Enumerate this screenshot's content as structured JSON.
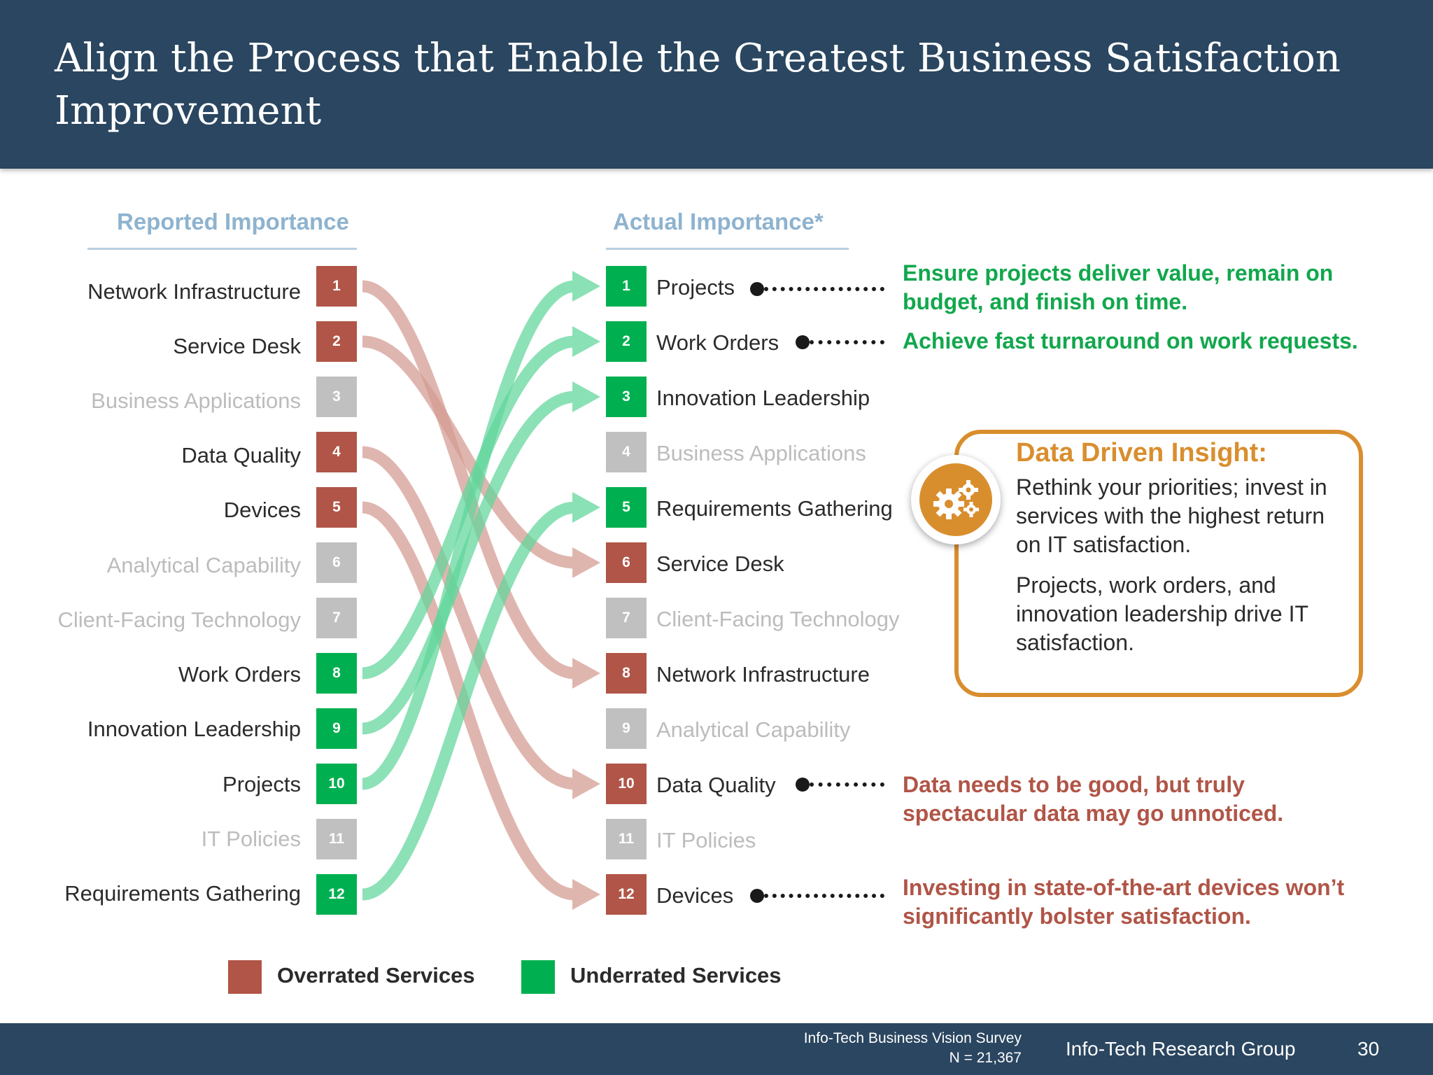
{
  "title": "Align the Process that Enable the Greatest Business Satisfaction Improvement",
  "columns": {
    "reported": "Reported Importance",
    "actual": "Actual Importance*"
  },
  "reported_list": [
    {
      "rank": "1",
      "label": "Network Infrastructure",
      "status": "overrated"
    },
    {
      "rank": "2",
      "label": "Service Desk",
      "status": "overrated"
    },
    {
      "rank": "3",
      "label": "Business Applications",
      "status": "neutral"
    },
    {
      "rank": "4",
      "label": "Data Quality",
      "status": "overrated"
    },
    {
      "rank": "5",
      "label": "Devices",
      "status": "overrated"
    },
    {
      "rank": "6",
      "label": "Analytical Capability",
      "status": "neutral"
    },
    {
      "rank": "7",
      "label": "Client-Facing Technology",
      "status": "neutral"
    },
    {
      "rank": "8",
      "label": "Work Orders",
      "status": "underrated"
    },
    {
      "rank": "9",
      "label": "Innovation Leadership",
      "status": "underrated"
    },
    {
      "rank": "10",
      "label": "Projects",
      "status": "underrated"
    },
    {
      "rank": "11",
      "label": "IT Policies",
      "status": "neutral"
    },
    {
      "rank": "12",
      "label": "Requirements Gathering",
      "status": "underrated"
    }
  ],
  "actual_list": [
    {
      "rank": "1",
      "label": "Projects",
      "status": "underrated"
    },
    {
      "rank": "2",
      "label": "Work Orders",
      "status": "underrated"
    },
    {
      "rank": "3",
      "label": "Innovation Leadership",
      "status": "underrated"
    },
    {
      "rank": "4",
      "label": "Business Applications",
      "status": "neutral"
    },
    {
      "rank": "5",
      "label": "Requirements Gathering",
      "status": "underrated"
    },
    {
      "rank": "6",
      "label": "Service Desk",
      "status": "overrated"
    },
    {
      "rank": "7",
      "label": "Client-Facing Technology",
      "status": "neutral"
    },
    {
      "rank": "8",
      "label": "Network Infrastructure",
      "status": "overrated"
    },
    {
      "rank": "9",
      "label": "Analytical Capability",
      "status": "neutral"
    },
    {
      "rank": "10",
      "label": "Data Quality",
      "status": "overrated"
    },
    {
      "rank": "11",
      "label": "IT Policies",
      "status": "neutral"
    },
    {
      "rank": "12",
      "label": "Devices",
      "status": "overrated"
    }
  ],
  "flows": [
    {
      "from": 1,
      "to": 8,
      "status": "overrated"
    },
    {
      "from": 2,
      "to": 6,
      "status": "overrated"
    },
    {
      "from": 4,
      "to": 10,
      "status": "overrated"
    },
    {
      "from": 5,
      "to": 12,
      "status": "overrated"
    },
    {
      "from": 8,
      "to": 2,
      "status": "underrated"
    },
    {
      "from": 9,
      "to": 3,
      "status": "underrated"
    },
    {
      "from": 10,
      "to": 1,
      "status": "underrated"
    },
    {
      "from": 12,
      "to": 5,
      "status": "underrated"
    }
  ],
  "notes": {
    "projects": [
      "Ensure projects deliver value, remain on",
      "budget, and finish on time."
    ],
    "work_orders": "Achieve fast turnaround on work requests.",
    "data_quality": [
      "Data needs to be good, but truly",
      "spectacular data may go unnoticed."
    ],
    "devices": [
      "Investing in state-of-the-art devices won’t",
      "significantly bolster satisfaction."
    ]
  },
  "insight": {
    "title": "Data Driven Insight:",
    "p1": "Rethink your priorities; invest in services with the highest return on IT satisfaction.",
    "p2": "Projects, work orders, and innovation leadership drive IT satisfaction.",
    "icon": "gears-icon"
  },
  "legend": {
    "overrated": "Overrated Services",
    "underrated": "Underrated Services"
  },
  "colors": {
    "overrated": "#b05547",
    "underrated": "#00b050",
    "neutral": "#c0c0c0",
    "flow_red": "#d39a90",
    "flow_green": "#5fd69a",
    "accent": "#d98e2e"
  },
  "footer": {
    "source_line1": "Info-Tech Business Vision Survey",
    "source_line2": "N = 21,367",
    "brand": "Info-Tech Research Group",
    "page": "30"
  }
}
